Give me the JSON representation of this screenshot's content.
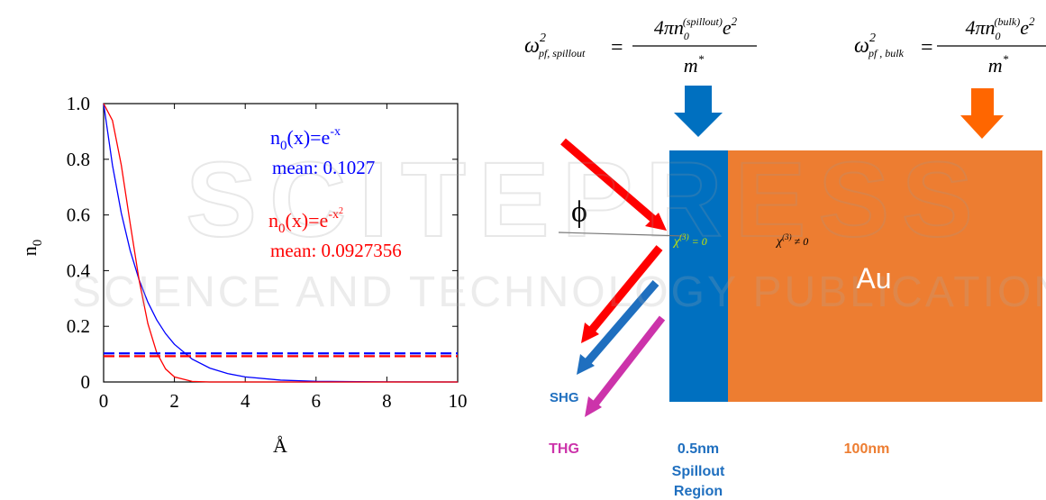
{
  "chart_data": {
    "type": "line",
    "x_label": "Å",
    "y_label": {
      "base": "n",
      "sub": "0"
    },
    "x": [
      0,
      0.25,
      0.5,
      0.75,
      1,
      1.25,
      1.5,
      1.75,
      2,
      2.5,
      3,
      3.5,
      4,
      5,
      6,
      8,
      10
    ],
    "series": [
      {
        "color": "#0000ff",
        "values": [
          1,
          0.7788,
          0.6065,
          0.4724,
          0.3679,
          0.2865,
          0.2231,
          0.1738,
          0.1353,
          0.0821,
          0.0498,
          0.0302,
          0.0183,
          0.0067,
          0.0025,
          0.0003,
          0
        ]
      },
      {
        "color": "#ff0000",
        "values": [
          1,
          0.9394,
          0.7788,
          0.5698,
          0.3679,
          0.2096,
          0.1054,
          0.0468,
          0.0183,
          0.0019,
          0.0001,
          0,
          0,
          0,
          0,
          0,
          0
        ]
      }
    ],
    "mean_lines": [
      {
        "value": 0.1027,
        "color": "#0000ff"
      },
      {
        "value": 0.0927356,
        "color": "#ff0000"
      }
    ],
    "annotations": [
      {
        "color": "#0000ff",
        "formula": {
          "base": "n",
          "sub": "0",
          "text": "(x)=e",
          "sup": "-x"
        },
        "mean": "mean: 0.1027"
      },
      {
        "color": "#ff0000",
        "formula": {
          "base": "n",
          "sub": "0",
          "text": "(x)=e",
          "sup": "-x",
          "sup2": "2"
        },
        "mean": "mean: 0.0927356"
      }
    ],
    "xlim": [
      0,
      10
    ],
    "xticks": [
      0,
      2,
      4,
      6,
      8,
      10
    ],
    "ylim": [
      0,
      1
    ],
    "yticks": [
      0,
      0.2,
      0.4,
      0.6,
      0.8,
      {
        "value": 1,
        "label": "1.0"
      }
    ]
  },
  "diagram": {
    "formulas": [
      {
        "lhs": "ω",
        "lhs_sup": "2",
        "lhs_sub": "pf, spillout",
        "eq": "=",
        "num": "4πn",
        "num_sub": "0",
        "num_sup": "(spillout)",
        "num_tail": "e",
        "num_tail_sup": "2",
        "den": "m",
        "den_sup": "*"
      },
      {
        "lhs": "ω",
        "lhs_sup": "2",
        "lhs_sub": "pf , bulk",
        "eq": "=",
        "num": "4πn",
        "num_sub": "0",
        "num_sup": "(bulk)",
        "num_tail": "e",
        "num_tail_sup": "2",
        "den": "m",
        "den_sup": "*"
      }
    ],
    "angle": "ϕ",
    "chi_zero": {
      "base": "χ",
      "sup": "(3)",
      "text": " = 0"
    },
    "chi_nonzero": {
      "base": "χ",
      "sup": "(3)",
      "text": " ≠ 0"
    },
    "bulk_label": "Au",
    "shg": "SHG",
    "thg": "THG",
    "spillout_width": "0.5nm",
    "spillout_name": [
      "Spillout",
      "Region"
    ],
    "bulk_width": "100nm"
  },
  "watermark": {
    "title": "SCITEPRESS",
    "subtitle": "SCIENCE AND TECHNOLOGY PUBLICATIONS"
  }
}
